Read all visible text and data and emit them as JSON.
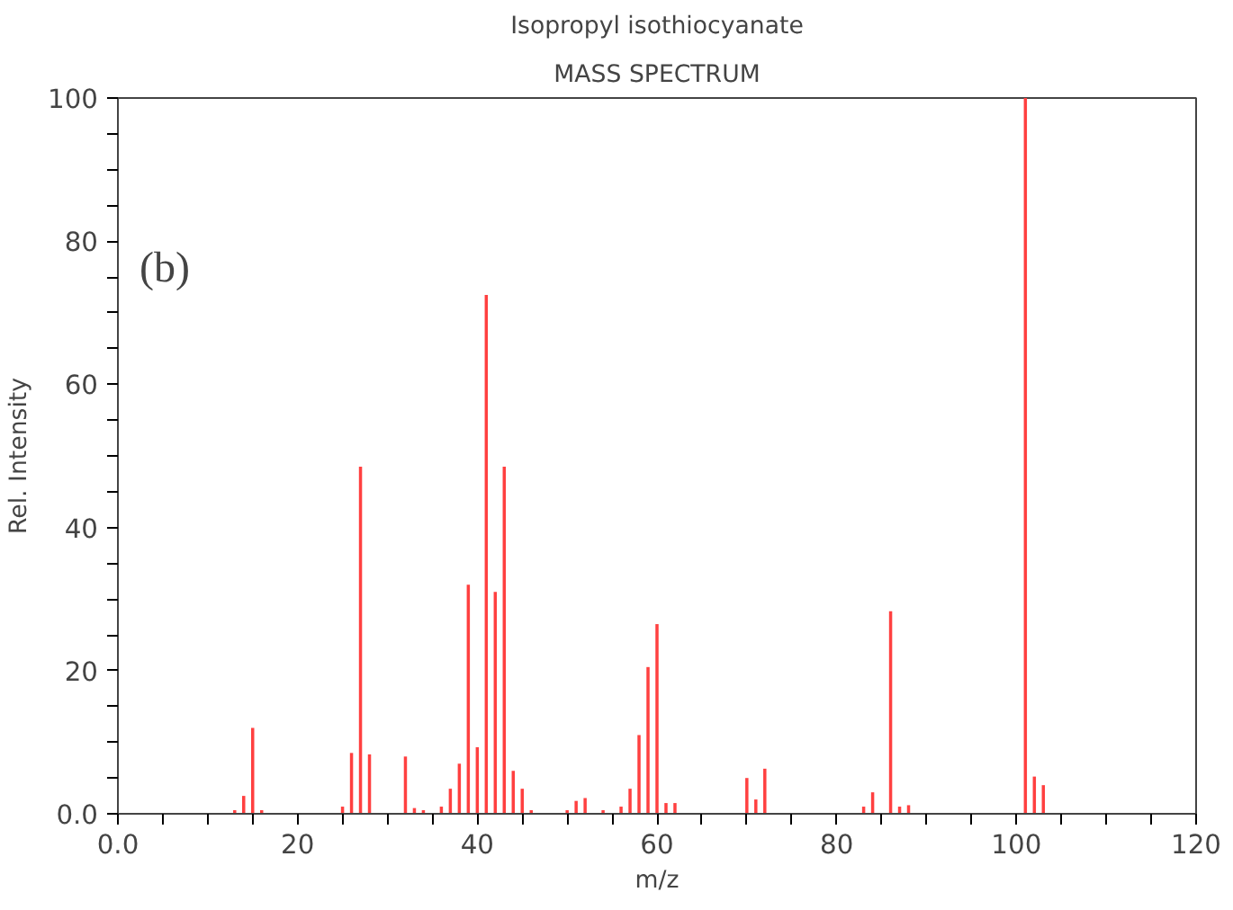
{
  "chart_data": {
    "type": "bar",
    "title": "Isopropyl isothiocyanate",
    "subtitle": "MASS SPECTRUM",
    "xlabel": "m/z",
    "ylabel": "Rel. Intensity",
    "annotations": [
      "(b)"
    ],
    "x": [
      13,
      14,
      15,
      16,
      25,
      26,
      27,
      28,
      32,
      33,
      34,
      36,
      37,
      38,
      39,
      40,
      41,
      42,
      43,
      44,
      45,
      46,
      50,
      51,
      52,
      54,
      56,
      57,
      58,
      59,
      60,
      61,
      62,
      70,
      71,
      72,
      83,
      84,
      86,
      87,
      88,
      101,
      102,
      103
    ],
    "values": [
      0.5,
      2.5,
      12,
      0.5,
      1,
      8.5,
      48.5,
      8.3,
      8,
      0.8,
      0.5,
      1,
      3.5,
      7,
      32,
      9.3,
      72.5,
      31,
      48.5,
      6,
      3.5,
      0.5,
      0.5,
      1.8,
      2.2,
      0.5,
      1,
      3.5,
      11,
      20.5,
      26.5,
      1.5,
      1.5,
      5,
      2,
      6.3,
      1,
      3,
      28.3,
      1,
      1.2,
      100,
      5.2,
      4
    ],
    "color": "#ff4040",
    "xlim": [
      0,
      120
    ],
    "ylim": [
      0,
      100
    ],
    "xticks": [
      {
        "value": 0,
        "label": "0.0"
      },
      {
        "value": 5,
        "label": null
      },
      {
        "value": 10,
        "label": null
      },
      {
        "value": 15,
        "label": null
      },
      20,
      {
        "value": 25,
        "label": null
      },
      {
        "value": 30,
        "label": null
      },
      {
        "value": 35,
        "label": null
      },
      40,
      {
        "value": 45,
        "label": null
      },
      {
        "value": 50,
        "label": null
      },
      {
        "value": 55,
        "label": null
      },
      60,
      {
        "value": 65,
        "label": null
      },
      {
        "value": 70,
        "label": null
      },
      {
        "value": 75,
        "label": null
      },
      80,
      {
        "value": 85,
        "label": null
      },
      {
        "value": 90,
        "label": null
      },
      {
        "value": 95,
        "label": null
      },
      100,
      {
        "value": 105,
        "label": null
      },
      {
        "value": 110,
        "label": null
      },
      {
        "value": 115,
        "label": null
      },
      120
    ],
    "yticks": [
      {
        "value": 0,
        "label": "0.0"
      },
      {
        "value": 5,
        "label": null
      },
      {
        "value": 10,
        "label": null
      },
      {
        "value": 15,
        "label": null
      },
      20,
      {
        "value": 25,
        "label": null
      },
      {
        "value": 30,
        "label": null
      },
      {
        "value": 35,
        "label": null
      },
      40,
      {
        "value": 45,
        "label": null
      },
      {
        "value": 50,
        "label": null
      },
      {
        "value": 55,
        "label": null
      },
      60,
      {
        "value": 65,
        "label": null
      },
      {
        "value": 70,
        "label": null
      },
      {
        "value": 75,
        "label": null
      },
      80,
      {
        "value": 85,
        "label": null
      },
      {
        "value": 90,
        "label": null
      },
      {
        "value": 95,
        "label": null
      },
      100
    ],
    "grid": false
  }
}
